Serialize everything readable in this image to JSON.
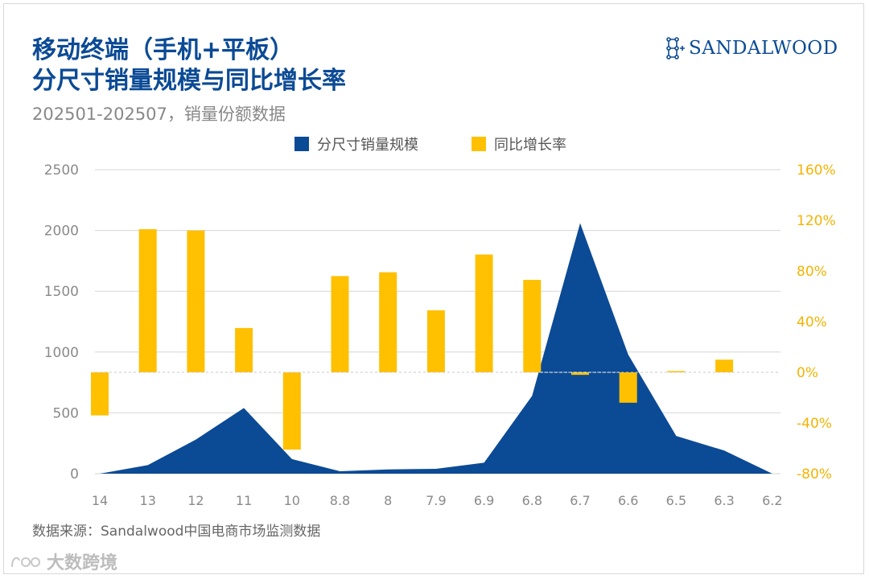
{
  "header": {
    "title_line1": "移动终端（手机+平板）",
    "title_line2": "分尺寸销量规模与同比增长率",
    "subtitle": "202501-202507，销量份额数据"
  },
  "logo": {
    "text": "SANDALWOOD"
  },
  "source": "数据来源：Sandalwood中国电商市场监测数据",
  "watermark": {
    "text": "大数跨境"
  },
  "colors": {
    "title": "#0b4a95",
    "area": "#0b4a95",
    "bar": "#ffc000",
    "right_axis": "#f3b300"
  },
  "chart_data": {
    "type": "bar",
    "categories": [
      "14",
      "13",
      "12",
      "11",
      "10",
      "8.8",
      "8",
      "7.9",
      "6.9",
      "6.8",
      "6.7",
      "6.6",
      "6.5",
      "6.3",
      "6.2"
    ],
    "series": [
      {
        "name": "分尺寸销量规模",
        "type": "area",
        "axis": "left",
        "values": [
          0,
          70,
          280,
          540,
          120,
          20,
          35,
          40,
          90,
          640,
          2060,
          980,
          310,
          190,
          0
        ]
      },
      {
        "name": "同比增长率",
        "type": "bar",
        "axis": "right",
        "unit": "%",
        "values": [
          -34,
          113,
          112,
          35,
          -61,
          76,
          79,
          49,
          93,
          73,
          -2,
          -24,
          1,
          10,
          null
        ]
      }
    ],
    "y_left": {
      "min": 0,
      "max": 2500,
      "ticks": [
        0,
        500,
        1000,
        1500,
        2000,
        2500
      ]
    },
    "y_right": {
      "min": -80,
      "max": 160,
      "ticks": [
        "-80%",
        "-40%",
        "0%",
        "40%",
        "80%",
        "120%",
        "160%"
      ]
    },
    "grid": true,
    "zero_line": "dashed",
    "legend_position": "top"
  }
}
